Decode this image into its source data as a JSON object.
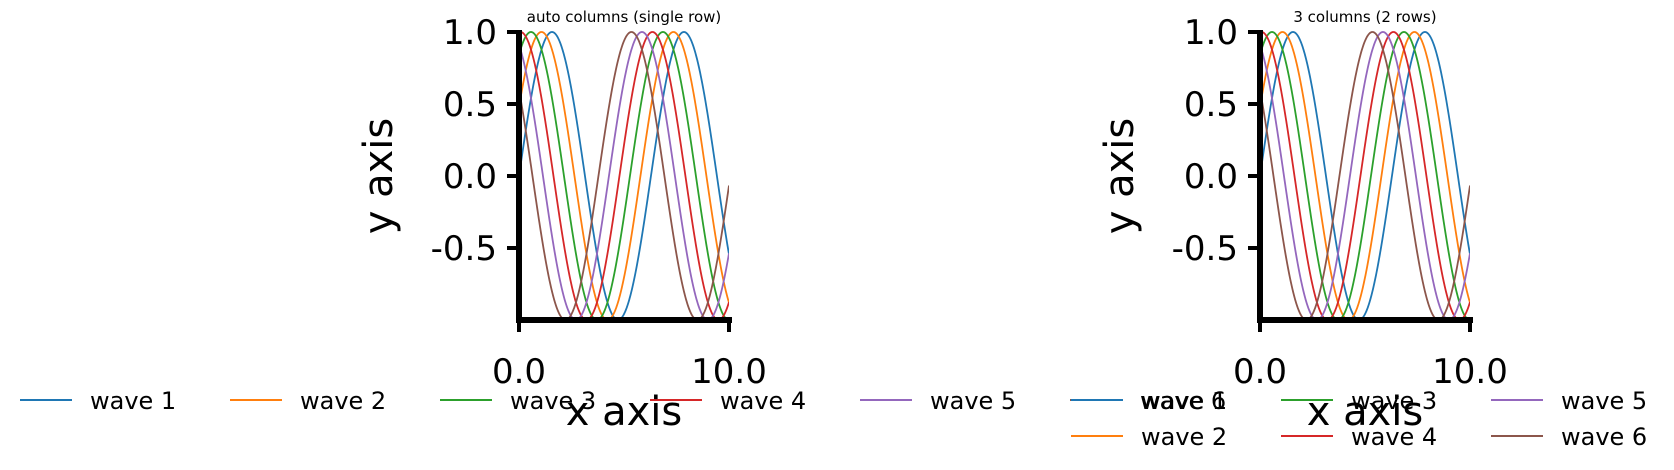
{
  "chart_data": [
    {
      "type": "line",
      "title": "auto columns (single row)",
      "xlabel": "x axis",
      "ylabel": "y axis",
      "xlim": [
        0,
        10
      ],
      "ylim": [
        -1,
        1
      ],
      "xticks": [
        {
          "value": 0,
          "label": "0.0"
        },
        {
          "value": 10,
          "label": "10.0"
        }
      ],
      "yticks": [
        {
          "value": 1,
          "label": "1.0"
        },
        {
          "value": 0.5,
          "label": "0.5"
        },
        {
          "value": 0,
          "label": "0.0"
        },
        {
          "value": -0.5,
          "label": "-0.5"
        }
      ],
      "grid": false,
      "legend": {
        "position": "below",
        "columns": 6
      },
      "series": [
        {
          "name": "wave 1",
          "color": "#1f77b4",
          "function": "sin(x)",
          "x_range": [
            0,
            10
          ]
        },
        {
          "name": "wave 2",
          "color": "#ff7f0e",
          "function": "sin(x+0.5)",
          "x_range": [
            0,
            10
          ]
        },
        {
          "name": "wave 3",
          "color": "#2ca02c",
          "function": "sin(x+1.0)",
          "x_range": [
            0,
            10
          ]
        },
        {
          "name": "wave 4",
          "color": "#d62728",
          "function": "sin(x+1.5)",
          "x_range": [
            0,
            10
          ]
        },
        {
          "name": "wave 5",
          "color": "#9467bd",
          "function": "sin(x+2.0)",
          "x_range": [
            0,
            10
          ]
        },
        {
          "name": "wave 6",
          "color": "#8c564b",
          "function": "sin(x+2.5)",
          "x_range": [
            0,
            10
          ]
        }
      ]
    },
    {
      "type": "line",
      "title": "3 columns (2 rows)",
      "xlabel": "x axis",
      "ylabel": "y axis",
      "xlim": [
        0,
        10
      ],
      "ylim": [
        -1,
        1
      ],
      "xticks": [
        {
          "value": 0,
          "label": "0.0"
        },
        {
          "value": 10,
          "label": "10.0"
        }
      ],
      "yticks": [
        {
          "value": 1,
          "label": "1.0"
        },
        {
          "value": 0.5,
          "label": "0.5"
        },
        {
          "value": 0,
          "label": "0.0"
        },
        {
          "value": -0.5,
          "label": "-0.5"
        }
      ],
      "grid": false,
      "legend": {
        "position": "below",
        "columns": 3
      },
      "series": [
        {
          "name": "wave 1",
          "color": "#1f77b4",
          "function": "sin(x)",
          "x_range": [
            0,
            10
          ]
        },
        {
          "name": "wave 2",
          "color": "#ff7f0e",
          "function": "sin(x+0.5)",
          "x_range": [
            0,
            10
          ]
        },
        {
          "name": "wave 3",
          "color": "#2ca02c",
          "function": "sin(x+1.0)",
          "x_range": [
            0,
            10
          ]
        },
        {
          "name": "wave 4",
          "color": "#d62728",
          "function": "sin(x+1.5)",
          "x_range": [
            0,
            10
          ]
        },
        {
          "name": "wave 5",
          "color": "#9467bd",
          "function": "sin(x+2.0)",
          "x_range": [
            0,
            10
          ]
        },
        {
          "name": "wave 6",
          "color": "#8c564b",
          "function": "sin(x+2.5)",
          "x_range": [
            0,
            10
          ]
        }
      ]
    }
  ]
}
